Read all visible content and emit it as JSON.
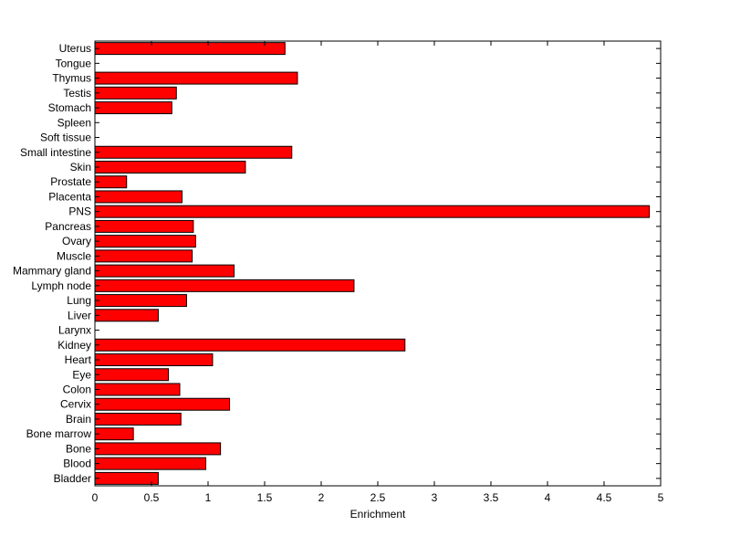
{
  "chart_data": {
    "type": "bar",
    "orientation": "horizontal",
    "title": "",
    "xlabel": "Enrichment",
    "ylabel": "",
    "xlim": [
      0,
      5
    ],
    "xticks": [
      "0",
      "0.5",
      "1",
      "1.5",
      "2",
      "2.5",
      "3",
      "3.5",
      "4",
      "4.5",
      "5"
    ],
    "grid": false,
    "legend": "none",
    "bar_color": "#ff0000",
    "bar_edge_color": "#000000",
    "categories": [
      "Uterus",
      "Tongue",
      "Thymus",
      "Testis",
      "Stomach",
      "Spleen",
      "Soft tissue",
      "Small intestine",
      "Skin",
      "Prostate",
      "Placenta",
      "PNS",
      "Pancreas",
      "Ovary",
      "Muscle",
      "Mammary gland",
      "Lymph node",
      "Lung",
      "Liver",
      "Larynx",
      "Kidney",
      "Heart",
      "Eye",
      "Colon",
      "Cervix",
      "Brain",
      "Bone marrow",
      "Bone",
      "Blood",
      "Bladder"
    ],
    "values": [
      1.68,
      0,
      1.79,
      0.72,
      0.68,
      0,
      0,
      1.74,
      1.33,
      0.28,
      0.77,
      4.9,
      0.87,
      0.89,
      0.86,
      1.23,
      2.29,
      0.81,
      0.56,
      0,
      2.74,
      1.04,
      0.65,
      0.75,
      1.19,
      0.76,
      0.34,
      1.11,
      0.98,
      0.56
    ]
  }
}
